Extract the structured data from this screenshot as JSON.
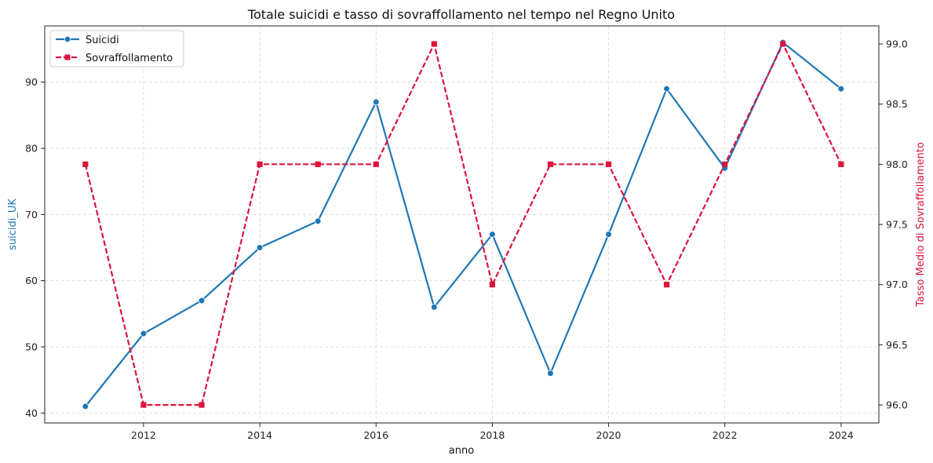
{
  "chart_data": {
    "type": "line",
    "title": "Totale suicidi e tasso di sovraffollamento nel tempo nel Regno Unito",
    "xlabel": "anno",
    "ylabel_left": "suicidi_UK",
    "ylabel_right": "Tasso Medio di Sovraffollamento",
    "x": [
      2011,
      2012,
      2013,
      2014,
      2015,
      2016,
      2017,
      2018,
      2019,
      2020,
      2021,
      2022,
      2023,
      2024
    ],
    "xlim": [
      2010.3,
      2024.65
    ],
    "xticks": [
      2012,
      2014,
      2016,
      2018,
      2020,
      2022,
      2024
    ],
    "ylim_left": [
      38.5,
      98.5
    ],
    "yticks_left": [
      40,
      50,
      60,
      70,
      80,
      90
    ],
    "ylim_right": [
      95.85,
      99.15
    ],
    "yticks_right": [
      "96.0",
      "96.5",
      "97.0",
      "97.5",
      "98.0",
      "98.5",
      "99.0"
    ],
    "grid": true,
    "legend_position": "top-left",
    "series": [
      {
        "name": "Suicidi",
        "axis": "left",
        "color": "#1f77b4",
        "style": "solid",
        "marker": "circle",
        "values": [
          41,
          52,
          57,
          65,
          69,
          87,
          56,
          67,
          46,
          67,
          89,
          77,
          96,
          89
        ]
      },
      {
        "name": "Sovraffollamento",
        "axis": "right",
        "color": "#dc143c",
        "style": "dashed",
        "marker": "square",
        "values": [
          98.0,
          96.0,
          96.0,
          98.0,
          98.0,
          98.0,
          99.0,
          97.0,
          98.0,
          98.0,
          97.0,
          98.0,
          99.0,
          98.0
        ]
      }
    ]
  }
}
